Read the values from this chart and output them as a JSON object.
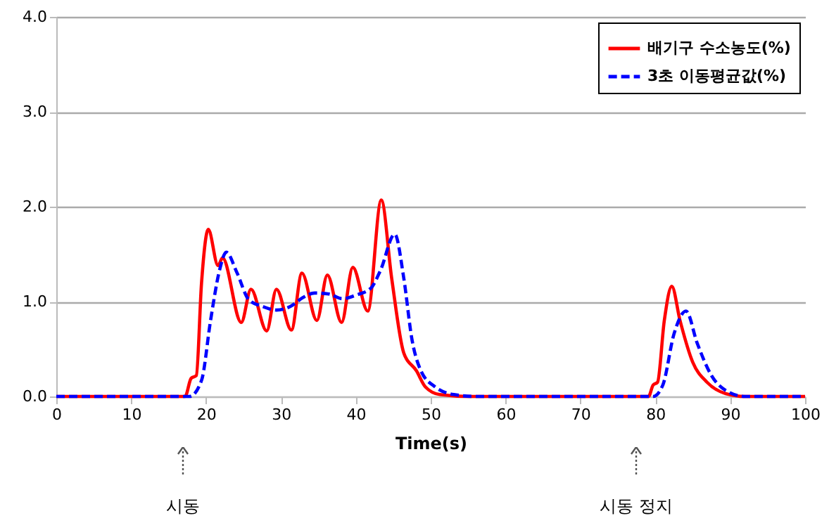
{
  "chart_data": {
    "type": "line",
    "xlabel": "Time(s)",
    "xlim": [
      0,
      100
    ],
    "xticks": [
      0,
      10,
      20,
      30,
      40,
      50,
      60,
      70,
      80,
      90,
      100
    ],
    "ylim": [
      0,
      4
    ],
    "yticks": [
      {
        "value": 0,
        "label": "0.0"
      },
      {
        "value": 1,
        "label": "1.0"
      },
      {
        "value": 2,
        "label": "2.0"
      },
      {
        "value": 3,
        "label": "3.0"
      },
      {
        "value": 4,
        "label": "4.0"
      }
    ],
    "grid": "y",
    "legend": "top right",
    "marker": "none",
    "series": [
      {
        "name": "배기구 수소농도(%)",
        "color": "#ff0000",
        "line_style": "solid",
        "x": [
          0,
          17.2,
          18,
          18.7,
          19.4,
          20.3,
          21.6,
          22.2,
          24.7,
          26,
          28.1,
          29.4,
          31.4,
          32.8,
          34.8,
          36.2,
          38.1,
          39.6,
          41.6,
          43.4,
          44.8,
          46.4,
          48.1,
          49.3,
          51.2,
          55,
          79.1,
          79.7,
          80.3,
          81.2,
          82.2,
          83.3,
          85,
          86.9,
          89.4,
          92,
          100
        ],
        "values": [
          0,
          0,
          0.19,
          0.22,
          1.2,
          1.76,
          1.38,
          1.46,
          0.78,
          1.13,
          0.69,
          1.13,
          0.7,
          1.3,
          0.8,
          1.28,
          0.78,
          1.36,
          0.9,
          2.07,
          1.24,
          0.46,
          0.27,
          0.1,
          0.02,
          0,
          0,
          0.12,
          0.15,
          0.8,
          1.16,
          0.8,
          0.36,
          0.15,
          0.03,
          0,
          0
        ]
      },
      {
        "name": "3초 이동평균값(%)",
        "color": "#0000ff",
        "line_style": "dashed",
        "x": [
          0,
          17.8,
          19.4,
          20.6,
          21.8,
          22.7,
          24.1,
          25.7,
          27.5,
          29.4,
          31.3,
          32.9,
          34.5,
          36.4,
          38.2,
          40.1,
          42,
          43.3,
          45.2,
          46.4,
          47.5,
          48.7,
          50.6,
          53.1,
          56,
          79.7,
          81,
          82.5,
          84.1,
          85.6,
          87.5,
          89.7,
          92,
          100
        ],
        "values": [
          0,
          0,
          0.17,
          0.8,
          1.33,
          1.52,
          1.31,
          1.02,
          0.95,
          0.91,
          0.95,
          1.04,
          1.09,
          1.08,
          1.03,
          1.07,
          1.14,
          1.33,
          1.71,
          1.25,
          0.6,
          0.27,
          0.1,
          0.02,
          0,
          0,
          0.12,
          0.66,
          0.9,
          0.56,
          0.22,
          0.05,
          0,
          0
        ]
      }
    ],
    "annotations": [
      "시동",
      "시동 정지"
    ]
  }
}
